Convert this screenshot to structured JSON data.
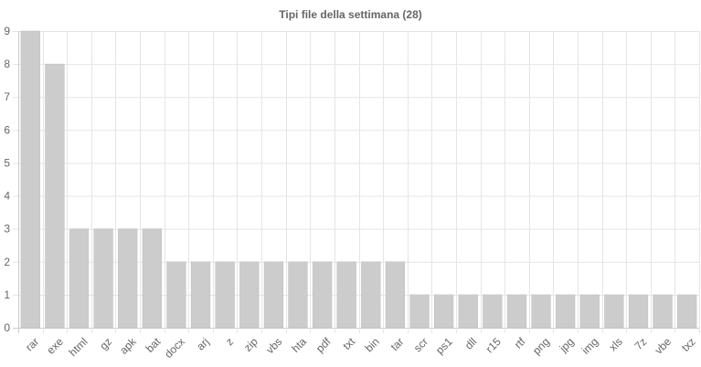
{
  "chart_data": {
    "type": "bar",
    "title": "Tipi file della settimana (28)",
    "xlabel": "",
    "ylabel": "",
    "categories": [
      "rar",
      "exe",
      "html",
      "gz",
      "apk",
      "bat",
      "docx",
      "arj",
      "z",
      "zip",
      "vbs",
      "hta",
      "pdf",
      "txt",
      "bin",
      "tar",
      "scr",
      "ps1",
      "dll",
      "r15",
      "rtf",
      "png",
      "jpg",
      "img",
      "xls",
      "7z",
      "vbe",
      "txz"
    ],
    "values": [
      9,
      8,
      3,
      3,
      3,
      3,
      2,
      2,
      2,
      2,
      2,
      2,
      2,
      2,
      2,
      2,
      1,
      1,
      1,
      1,
      1,
      1,
      1,
      1,
      1,
      1,
      1,
      1
    ],
    "ylim": [
      0,
      9
    ],
    "yticks": [
      0,
      1,
      2,
      3,
      4,
      5,
      6,
      7,
      8,
      9
    ],
    "grid": true,
    "legend": "none",
    "colors": {
      "bar_fill": "#cccccc",
      "bar_stroke": "#bdbdbd",
      "grid": "#e5e5e5",
      "axis": "#cccccc",
      "text": "#666666"
    }
  }
}
